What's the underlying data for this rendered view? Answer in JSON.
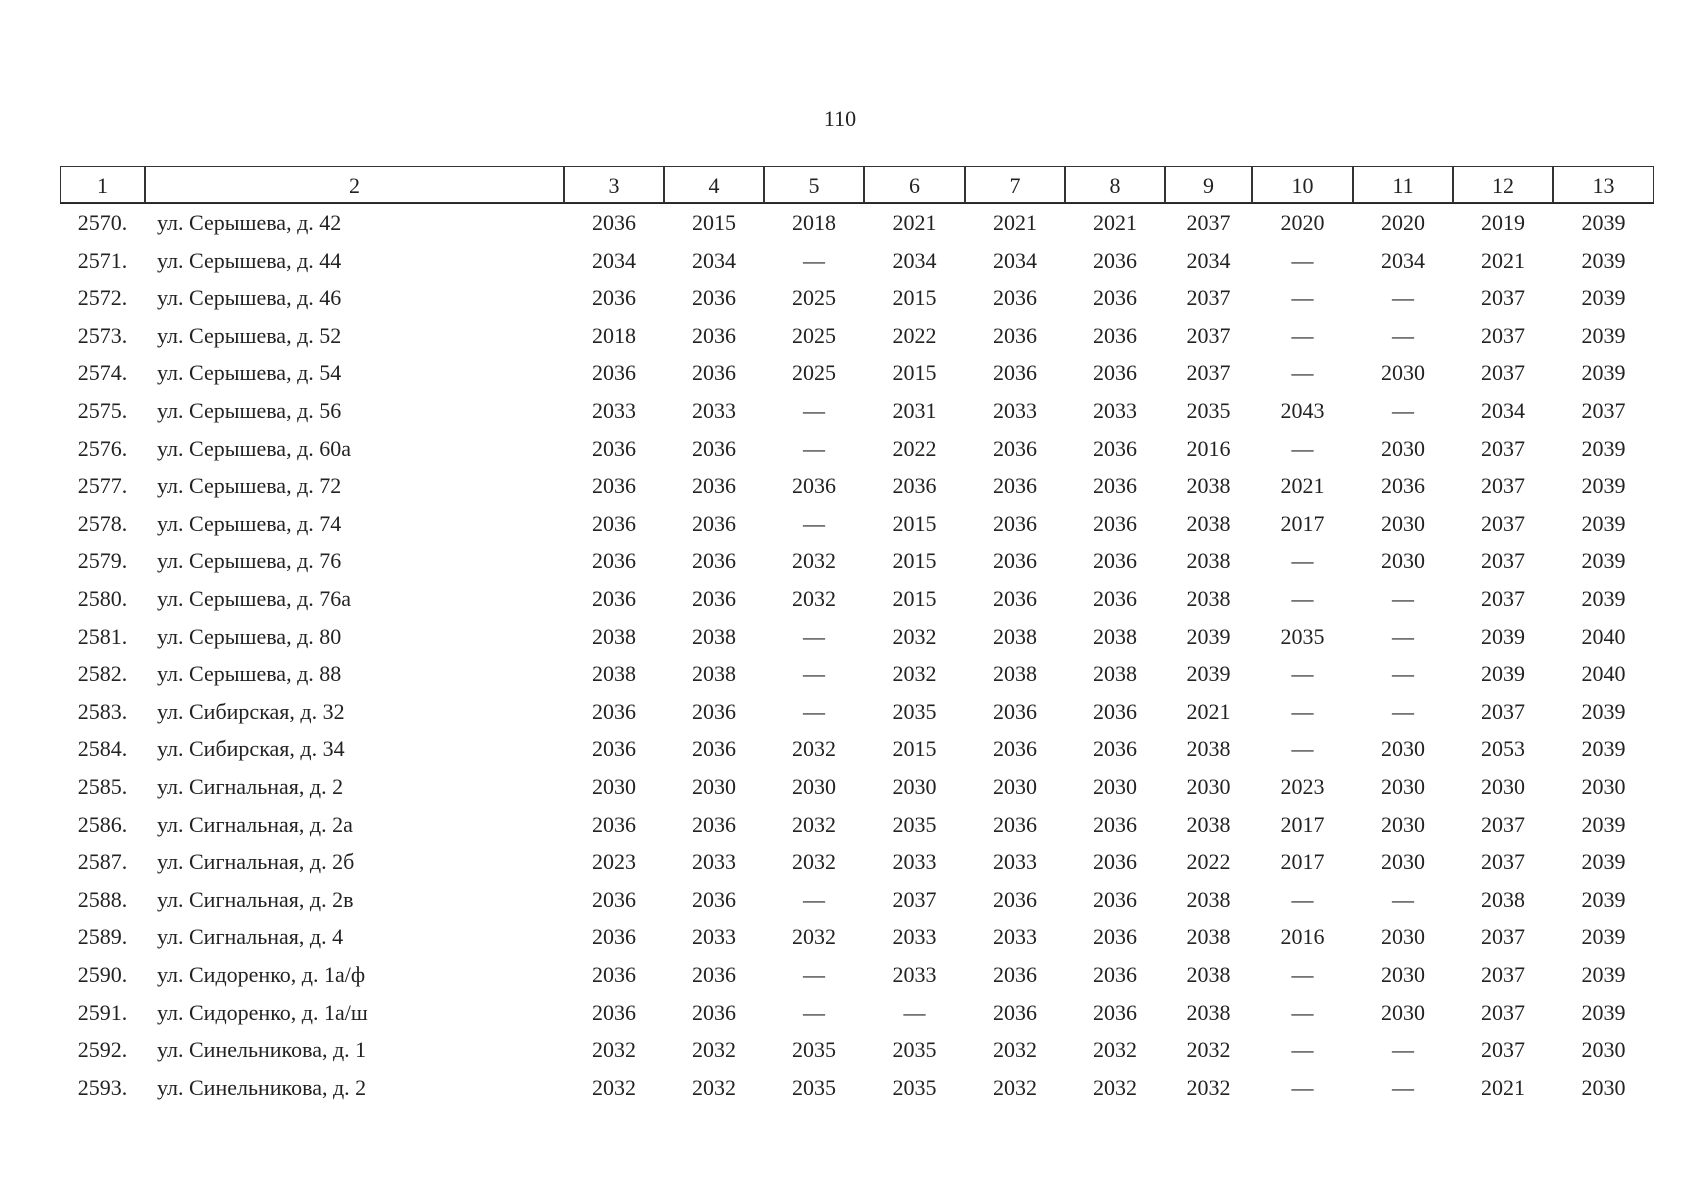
{
  "page_number": "110",
  "table": {
    "header": [
      "1",
      "2",
      "3",
      "4",
      "5",
      "6",
      "7",
      "8",
      "9",
      "10",
      "11",
      "12",
      "13"
    ],
    "rows": [
      [
        "2570.",
        "ул. Серышева, д. 42",
        "2036",
        "2015",
        "2018",
        "2021",
        "2021",
        "2021",
        "2037",
        "2020",
        "2020",
        "2019",
        "2039"
      ],
      [
        "2571.",
        "ул. Серышева, д. 44",
        "2034",
        "2034",
        "—",
        "2034",
        "2034",
        "2036",
        "2034",
        "—",
        "2034",
        "2021",
        "2039"
      ],
      [
        "2572.",
        "ул. Серышева, д. 46",
        "2036",
        "2036",
        "2025",
        "2015",
        "2036",
        "2036",
        "2037",
        "—",
        "—",
        "2037",
        "2039"
      ],
      [
        "2573.",
        "ул. Серышева, д. 52",
        "2018",
        "2036",
        "2025",
        "2022",
        "2036",
        "2036",
        "2037",
        "—",
        "—",
        "2037",
        "2039"
      ],
      [
        "2574.",
        "ул. Серышева, д. 54",
        "2036",
        "2036",
        "2025",
        "2015",
        "2036",
        "2036",
        "2037",
        "—",
        "2030",
        "2037",
        "2039"
      ],
      [
        "2575.",
        "ул. Серышева, д. 56",
        "2033",
        "2033",
        "—",
        "2031",
        "2033",
        "2033",
        "2035",
        "2043",
        "—",
        "2034",
        "2037"
      ],
      [
        "2576.",
        "ул. Серышева, д. 60а",
        "2036",
        "2036",
        "—",
        "2022",
        "2036",
        "2036",
        "2016",
        "—",
        "2030",
        "2037",
        "2039"
      ],
      [
        "2577.",
        "ул. Серышева, д. 72",
        "2036",
        "2036",
        "2036",
        "2036",
        "2036",
        "2036",
        "2038",
        "2021",
        "2036",
        "2037",
        "2039"
      ],
      [
        "2578.",
        "ул. Серышева, д. 74",
        "2036",
        "2036",
        "—",
        "2015",
        "2036",
        "2036",
        "2038",
        "2017",
        "2030",
        "2037",
        "2039"
      ],
      [
        "2579.",
        "ул. Серышева, д. 76",
        "2036",
        "2036",
        "2032",
        "2015",
        "2036",
        "2036",
        "2038",
        "—",
        "2030",
        "2037",
        "2039"
      ],
      [
        "2580.",
        "ул. Серышева, д. 76а",
        "2036",
        "2036",
        "2032",
        "2015",
        "2036",
        "2036",
        "2038",
        "—",
        "—",
        "2037",
        "2039"
      ],
      [
        "2581.",
        "ул. Серышева, д. 80",
        "2038",
        "2038",
        "—",
        "2032",
        "2038",
        "2038",
        "2039",
        "2035",
        "—",
        "2039",
        "2040"
      ],
      [
        "2582.",
        "ул. Серышева, д. 88",
        "2038",
        "2038",
        "—",
        "2032",
        "2038",
        "2038",
        "2039",
        "—",
        "—",
        "2039",
        "2040"
      ],
      [
        "2583.",
        "ул. Сибирская, д. 32",
        "2036",
        "2036",
        "—",
        "2035",
        "2036",
        "2036",
        "2021",
        "—",
        "—",
        "2037",
        "2039"
      ],
      [
        "2584.",
        "ул. Сибирская, д. 34",
        "2036",
        "2036",
        "2032",
        "2015",
        "2036",
        "2036",
        "2038",
        "—",
        "2030",
        "2053",
        "2039"
      ],
      [
        "2585.",
        "ул. Сигнальная, д. 2",
        "2030",
        "2030",
        "2030",
        "2030",
        "2030",
        "2030",
        "2030",
        "2023",
        "2030",
        "2030",
        "2030"
      ],
      [
        "2586.",
        "ул. Сигнальная, д. 2а",
        "2036",
        "2036",
        "2032",
        "2035",
        "2036",
        "2036",
        "2038",
        "2017",
        "2030",
        "2037",
        "2039"
      ],
      [
        "2587.",
        "ул. Сигнальная, д. 2б",
        "2023",
        "2033",
        "2032",
        "2033",
        "2033",
        "2036",
        "2022",
        "2017",
        "2030",
        "2037",
        "2039"
      ],
      [
        "2588.",
        "ул. Сигнальная, д. 2в",
        "2036",
        "2036",
        "—",
        "2037",
        "2036",
        "2036",
        "2038",
        "—",
        "—",
        "2038",
        "2039"
      ],
      [
        "2589.",
        "ул. Сигнальная, д. 4",
        "2036",
        "2033",
        "2032",
        "2033",
        "2033",
        "2036",
        "2038",
        "2016",
        "2030",
        "2037",
        "2039"
      ],
      [
        "2590.",
        "ул. Сидоренко, д. 1а/ф",
        "2036",
        "2036",
        "—",
        "2033",
        "2036",
        "2036",
        "2038",
        "—",
        "2030",
        "2037",
        "2039"
      ],
      [
        "2591.",
        "ул. Сидоренко, д. 1а/ш",
        "2036",
        "2036",
        "—",
        "—",
        "2036",
        "2036",
        "2038",
        "—",
        "2030",
        "2037",
        "2039"
      ],
      [
        "2592.",
        "ул. Синельникова, д. 1",
        "2032",
        "2032",
        "2035",
        "2035",
        "2032",
        "2032",
        "2032",
        "—",
        "—",
        "2037",
        "2030"
      ],
      [
        "2593.",
        "ул. Синельникова, д. 2",
        "2032",
        "2032",
        "2035",
        "2035",
        "2032",
        "2032",
        "2032",
        "—",
        "—",
        "2021",
        "2030"
      ]
    ]
  }
}
